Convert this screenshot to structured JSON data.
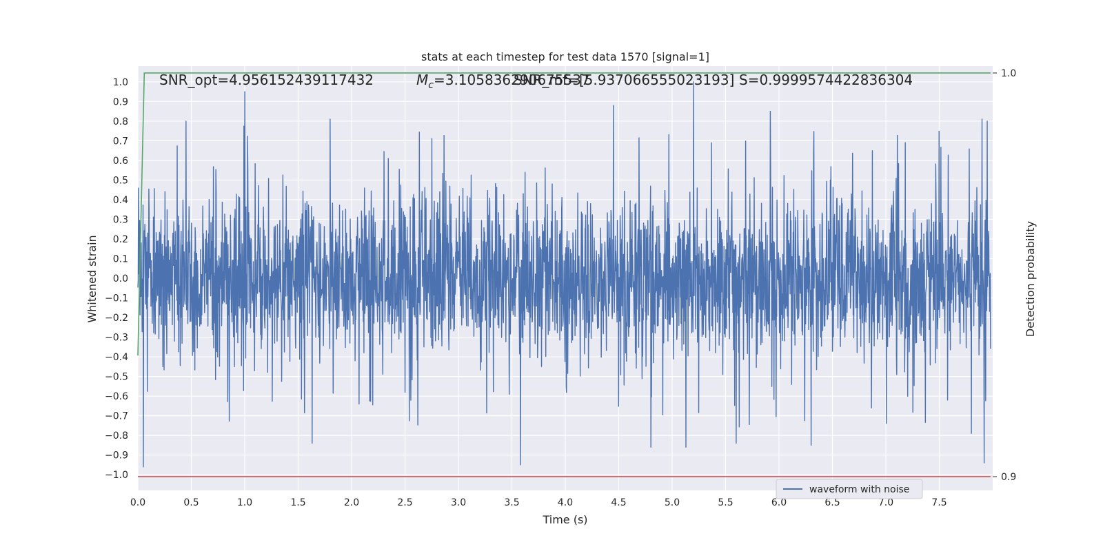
{
  "chart_data": {
    "type": "line",
    "title": "stats at each timestep for test data 1570 [signal=1]",
    "xlabel": "Time (s)",
    "ylabel": "Whitened strain",
    "y2label": "Detection probability",
    "xlim": [
      0,
      8.0
    ],
    "ylim": [
      -1.08,
      1.08
    ],
    "y2lim": [
      0.8966,
      1.0017
    ],
    "grid": true,
    "legend_position": "lower-right",
    "x_ticks": [
      0.0,
      0.5,
      1.0,
      1.5,
      2.0,
      2.5,
      3.0,
      3.5,
      4.0,
      4.5,
      5.0,
      5.5,
      6.0,
      6.5,
      7.0,
      7.5
    ],
    "x_tick_labels": [
      "0.0",
      "0.5",
      "1.0",
      "1.5",
      "2.0",
      "2.5",
      "3.0",
      "3.5",
      "4.0",
      "4.5",
      "5.0",
      "5.5",
      "6.0",
      "6.5",
      "7.0",
      "7.5"
    ],
    "y_ticks": [
      1.0,
      0.9,
      0.8,
      0.7,
      0.6,
      0.5,
      0.4,
      0.3,
      0.2,
      0.1,
      0.0,
      -0.1,
      -0.2,
      -0.3,
      -0.4,
      -0.5,
      -0.6,
      -0.7,
      -0.8,
      -0.9,
      -1.0
    ],
    "y_tick_labels": [
      "1.0",
      "0.9",
      "0.8",
      "0.7",
      "0.6",
      "0.5",
      "0.4",
      "0.3",
      "0.2",
      "0.1",
      "0.0",
      "−0.1",
      "−0.2",
      "−0.3",
      "−0.4",
      "−0.5",
      "−0.6",
      "−0.7",
      "−0.8",
      "−0.9",
      "−1.0"
    ],
    "y2_ticks": [
      1.0,
      0.9
    ],
    "y2_tick_labels": [
      "1.0",
      "0.9"
    ],
    "annotations": {
      "snr_opt": "SNR_opt=4.956152439117432",
      "mc_symbol": "M",
      "mc_subscript": "c",
      "mc_value": "=3.105836290675537",
      "snr_mf": "SNR_mf=[5.937066555023193]",
      "s_value": "S=0.9999574422836304"
    },
    "series": [
      {
        "name": "waveform with noise",
        "color": "#4c72b0",
        "kind": "noise_waveform",
        "x_range": [
          0,
          7.98
        ],
        "amplitude_range": [
          -0.96,
          1.0
        ],
        "notable_peaks": [
          {
            "x": 1.0,
            "y": 0.95
          },
          {
            "x": 5.2,
            "y": 1.0
          },
          {
            "x": 4.45,
            "y": 0.88
          },
          {
            "x": 1.8,
            "y": 0.81
          },
          {
            "x": 0.45,
            "y": 0.8
          },
          {
            "x": 5.92,
            "y": 0.85
          },
          {
            "x": 3.58,
            "y": -0.95
          },
          {
            "x": 0.05,
            "y": -0.96
          },
          {
            "x": 7.92,
            "y": -0.94
          },
          {
            "x": 7.9,
            "y": 0.81
          },
          {
            "x": 7.95,
            "y": 0.8
          },
          {
            "x": 5.13,
            "y": -0.86
          },
          {
            "x": 4.8,
            "y": -0.86
          },
          {
            "x": 5.6,
            "y": -0.84
          },
          {
            "x": 1.63,
            "y": -0.84
          },
          {
            "x": 6.3,
            "y": -0.85
          },
          {
            "x": 7.8,
            "y": -0.79
          }
        ]
      },
      {
        "name": "",
        "color": "#55a868",
        "axis": "right",
        "x": [
          0.0,
          0.06,
          7.98
        ],
        "y": [
          0.93,
          1.0,
          1.0
        ]
      },
      {
        "name": "",
        "color": "#c44e52",
        "axis": "right",
        "x": [
          0.0,
          7.98
        ],
        "y": [
          0.9,
          0.9
        ]
      }
    ]
  }
}
